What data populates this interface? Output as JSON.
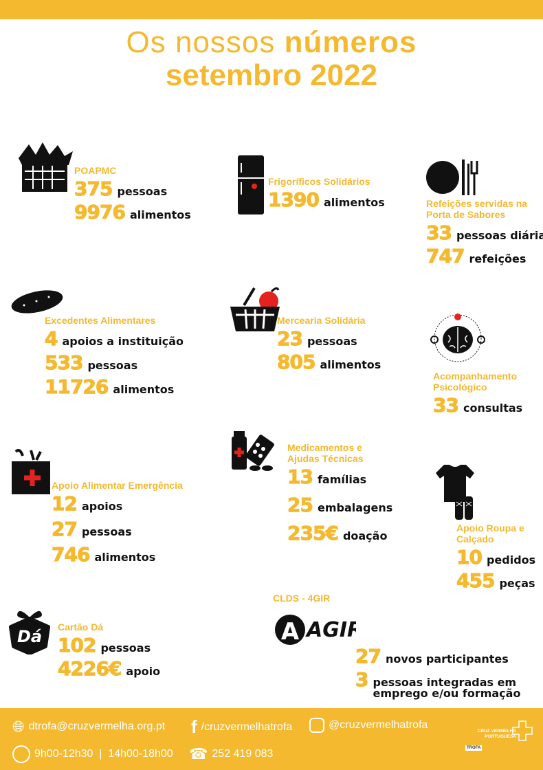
{
  "header": {
    "title_light": "Os nossos",
    "title_bold": "números",
    "subtitle": "setembro 2022"
  },
  "colors": {
    "accent": "#f4b92f",
    "text": "#111111",
    "red": "#e42320"
  },
  "stats": [
    {
      "id": "poapmc",
      "icon": "vegetable-basket-icon",
      "label": "POAPMC",
      "rows": [
        {
          "num": "375",
          "text": "pessoas"
        },
        {
          "num": "9976",
          "text": "alimentos"
        }
      ]
    },
    {
      "id": "frigorificos",
      "icon": "fridge-icon",
      "label": "Frigoríficos Solidários",
      "rows": [
        {
          "num": "1390",
          "text": "alimentos"
        }
      ]
    },
    {
      "id": "refeicoes",
      "icon": "plate-cutlery-icon",
      "label": "Refeições servidas na\nPorta de Sabores",
      "rows": [
        {
          "num": "33",
          "text": "pessoas diárias"
        },
        {
          "num": "747",
          "text": "refeições"
        }
      ]
    },
    {
      "id": "excedentes",
      "icon": "bread-icon",
      "label": "Excedentes Alimentares",
      "rows": [
        {
          "num": "4",
          "text": "apoios a instituição"
        },
        {
          "num": "533",
          "text": "pessoas"
        },
        {
          "num": "11726",
          "text": "alimentos"
        }
      ]
    },
    {
      "id": "mercearia",
      "icon": "shopping-basket-apple-icon",
      "label": "Mercearia Solidária",
      "rows": [
        {
          "num": "23",
          "text": "pessoas"
        },
        {
          "num": "805",
          "text": "alimentos"
        }
      ]
    },
    {
      "id": "psicologico",
      "icon": "brain-icon",
      "label": "Acompanhamento\nPsicológico",
      "rows": [
        {
          "num": "33",
          "text": "consultas"
        }
      ]
    },
    {
      "id": "medicamentos",
      "icon": "medicine-icon",
      "label": "Medicamentos e\nAjudas Técnicas",
      "rows": [
        {
          "num": "13",
          "text": "famílias"
        },
        {
          "num": "25",
          "text": "embalagens"
        },
        {
          "num": "235€",
          "text": "doação"
        }
      ]
    },
    {
      "id": "emergencia",
      "icon": "emergency-food-bag-icon",
      "label": "Apoio Alimentar Emergência",
      "rows": [
        {
          "num": "12",
          "text": "apoios"
        },
        {
          "num": "27",
          "text": "pessoas"
        },
        {
          "num": "746",
          "text": "alimentos"
        }
      ]
    },
    {
      "id": "roupa",
      "icon": "shirt-shoes-icon",
      "label": "Apoio Roupa e\nCalçado",
      "rows": [
        {
          "num": "10",
          "text": "pedidos"
        },
        {
          "num": "455",
          "text": "peças"
        }
      ]
    },
    {
      "id": "cartao",
      "icon": "gift-card-icon",
      "label": "Cartão Dá",
      "rows": [
        {
          "num": "102",
          "text": "pessoas"
        },
        {
          "num": "4226€",
          "text": "apoio"
        }
      ]
    },
    {
      "id": "clds",
      "icon": "agir-logo",
      "label": "CLDS - 4GIR",
      "logo_text": "AGIR",
      "rows": [
        {
          "num": "27",
          "text": "novos participantes"
        },
        {
          "num": "3",
          "text": "pessoas integradas em\nemprego e/ou formação"
        }
      ]
    }
  ],
  "footer": {
    "email": "dtrofa@cruzvermelha.org.pt",
    "facebook": "/cruzvermelhatrofa",
    "instagram": "@cruzvermelhatrofa",
    "hours": "9h00-12h30  |  14h00-18h00",
    "phone": "252 419 083",
    "logo_name": "CRUZ VERMELHA\nPORTUGUESA",
    "logo_branch": "TROFA"
  }
}
